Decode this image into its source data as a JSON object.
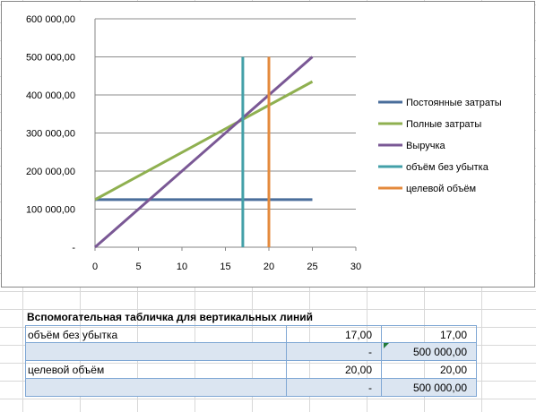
{
  "chart_data": {
    "type": "line",
    "xlim": [
      0,
      30
    ],
    "ylim": [
      0,
      600000
    ],
    "x_ticks": [
      "0",
      "5",
      "10",
      "15",
      "20",
      "25",
      "30"
    ],
    "y_ticks": [
      "-",
      "100 000,00",
      "200 000,00",
      "300 000,00",
      "400 000,00",
      "500 000,00",
      "600 000,00"
    ],
    "grid": true,
    "legend_position": "right",
    "series": [
      {
        "name": "Постоянные затраты",
        "color": "#4a6e9b",
        "x": [
          0,
          25
        ],
        "y": [
          125000,
          125000
        ]
      },
      {
        "name": "Полные затраты",
        "color": "#8fb050",
        "x": [
          0,
          25
        ],
        "y": [
          125000,
          435000
        ]
      },
      {
        "name": "Выручка",
        "color": "#7a5895",
        "x": [
          0,
          25
        ],
        "y": [
          0,
          500000
        ]
      },
      {
        "name": "объём без убытка",
        "color": "#43a0a8",
        "x": [
          17,
          17
        ],
        "y": [
          0,
          500000
        ]
      },
      {
        "name": "целевой объём",
        "color": "#e48a3c",
        "x": [
          20,
          20
        ],
        "y": [
          0,
          500000
        ]
      }
    ]
  },
  "table": {
    "title": "Вспомогательная табличка для вертикальных линий",
    "rows": [
      [
        "объём без убытка",
        "17,00",
        "17,00"
      ],
      [
        "",
        "-",
        "500 000,00"
      ],
      [
        "целевой объём",
        "20,00",
        "20,00"
      ],
      [
        "",
        "-",
        "500 000,00"
      ]
    ]
  }
}
